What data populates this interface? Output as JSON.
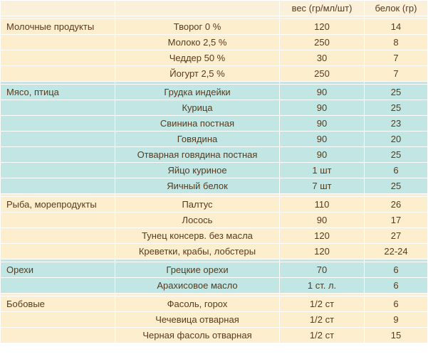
{
  "colors": {
    "header_bg": "#fbf1da",
    "cream_bg": "#fdeecd",
    "mint_bg": "#c1e6e4",
    "text": "#5a3a1c"
  },
  "header": {
    "weight": "вес (гр/мл/шт)",
    "protein": "белок (гр)"
  },
  "sections": [
    {
      "category": "Молочные продукты",
      "color": "cream",
      "rows": [
        {
          "product": "Творог 0 %",
          "weight": "120",
          "protein": "14"
        },
        {
          "product": "Молоко 2,5 %",
          "weight": "250",
          "protein": "8"
        },
        {
          "product": "Чеддер 50 %",
          "weight": "30",
          "protein": "7"
        },
        {
          "product": "Йогурт 2,5 %",
          "weight": "250",
          "protein": "7"
        }
      ]
    },
    {
      "category": "Мясо, птица",
      "color": "mint",
      "rows": [
        {
          "product": "Грудка индейки",
          "weight": "90",
          "protein": "25"
        },
        {
          "product": "Курица",
          "weight": "90",
          "protein": "25"
        },
        {
          "product": "Свинина постная",
          "weight": "90",
          "protein": "23"
        },
        {
          "product": "Говядина",
          "weight": "90",
          "protein": "20"
        },
        {
          "product": "Отварная говядина постная",
          "weight": "90",
          "protein": "25"
        },
        {
          "product": "Яйцо куриное",
          "weight": "1 шт",
          "protein": "6"
        },
        {
          "product": "Яичный белок",
          "weight": "7 шт",
          "protein": "25"
        }
      ]
    },
    {
      "category": "Рыба, морепродукты",
      "color": "cream",
      "rows": [
        {
          "product": "Палтус",
          "weight": "110",
          "protein": "26"
        },
        {
          "product": "Лосось",
          "weight": "90",
          "protein": "17"
        },
        {
          "product": "Тунец консерв. без масла",
          "weight": "120",
          "protein": "27"
        },
        {
          "product": "Креветки, крабы, лобстеры",
          "weight": "120",
          "protein": "22-24"
        }
      ]
    },
    {
      "category": "Орехи",
      "color": "mint",
      "rows": [
        {
          "product": "Грецкие орехи",
          "weight": "70",
          "protein": "6"
        },
        {
          "product": "Арахисовое масло",
          "weight": "1 ст. л.",
          "protein": "6"
        }
      ]
    },
    {
      "category": "Бобовые",
      "color": "cream",
      "rows": [
        {
          "product": "Фасоль, горох",
          "weight": "1/2 ст",
          "protein": "6"
        },
        {
          "product": "Чечевица отварная",
          "weight": "1/2 ст",
          "protein": "9"
        },
        {
          "product": "Черная фасоль отварная",
          "weight": "1/2 ст",
          "protein": "15"
        }
      ]
    }
  ]
}
